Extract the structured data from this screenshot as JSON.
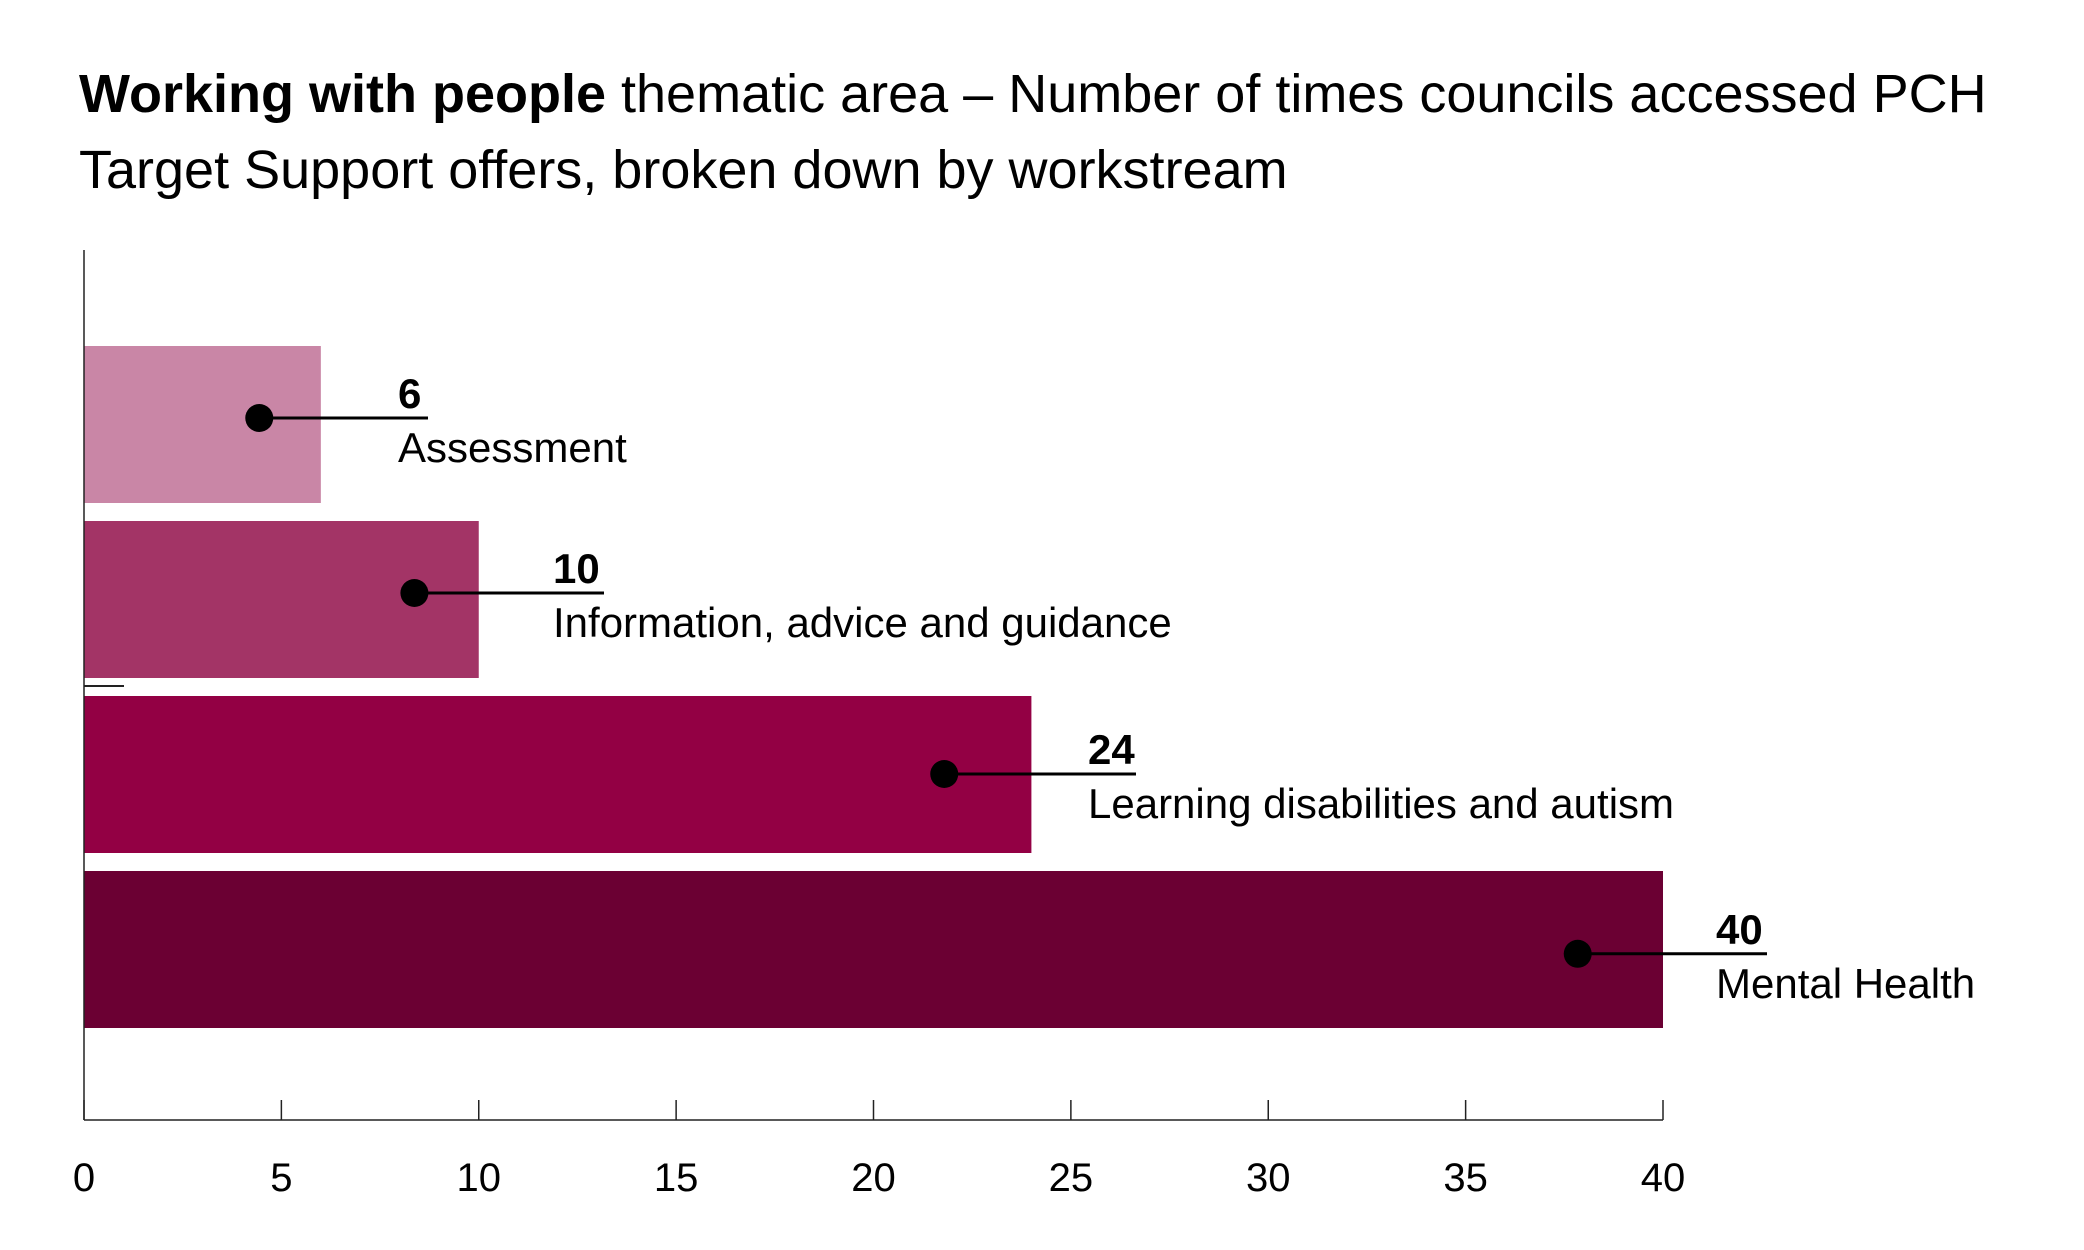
{
  "title": {
    "bold": "Working with people",
    "rest": " thematic area – Number of times councils accessed PCH Target Support offers, broken down by workstream"
  },
  "chart_data": {
    "type": "bar",
    "orientation": "horizontal",
    "title": "Working with people thematic area – Number of times councils accessed PCH Target Support offers, broken down by workstream",
    "categories": [
      "Assessment",
      "Information, advice and guidance",
      "Learning disabilities and autism",
      "Mental Health"
    ],
    "values": [
      6,
      10,
      24,
      40
    ],
    "colors": [
      "#c986a6",
      "#a33466",
      "#930044",
      "#6b0033"
    ],
    "xlim": [
      0,
      40
    ],
    "xticks": [
      0,
      5,
      10,
      15,
      20,
      25,
      30,
      35,
      40
    ],
    "xlabel": "",
    "ylabel": "",
    "grid": false,
    "legend": "none",
    "data_labels": [
      "6",
      "10",
      "24",
      "40"
    ]
  }
}
